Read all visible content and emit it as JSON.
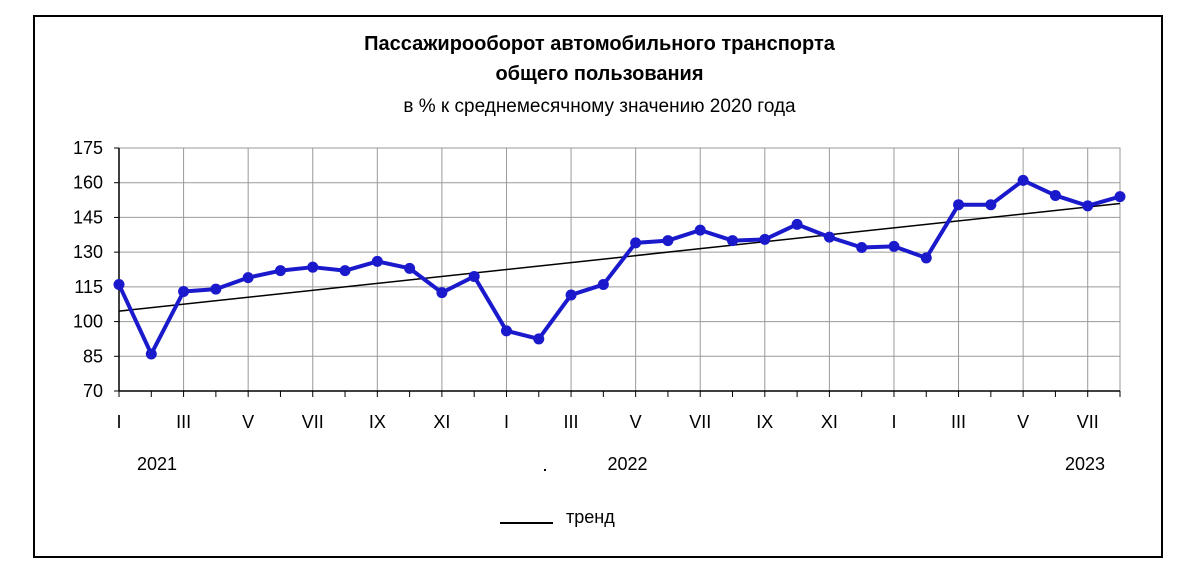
{
  "chart_data": {
    "type": "line",
    "title": "Пассажирооборот автомобильного транспорта",
    "title_line2": "общего пользования",
    "subtitle": "в % к среднемесячному значению 2020 года",
    "ylim": [
      70,
      175
    ],
    "yticks": [
      "70",
      "85",
      "100",
      "115",
      "130",
      "145",
      "160",
      "175"
    ],
    "x_labels": [
      "I",
      "",
      "III",
      "",
      "V",
      "",
      "VII",
      "",
      "IX",
      "",
      "XI",
      "",
      "I",
      "",
      "III",
      "",
      "V",
      "",
      "VII",
      "",
      "IX",
      "",
      "XI",
      "",
      "I",
      "",
      "III",
      "",
      "V",
      "",
      "VII",
      ""
    ],
    "years": [
      {
        "label": "2021",
        "start_index": 0
      },
      {
        "label": "2022",
        "start_index": 12
      },
      {
        "label": "2023",
        "start_index": 24
      }
    ],
    "grid": true,
    "series": [
      {
        "values": [
          116,
          86,
          113,
          114,
          119,
          122,
          123.5,
          122,
          126,
          123,
          112.5,
          119.5,
          96,
          92.5,
          111.5,
          116,
          134,
          135,
          139.5,
          135,
          135.5,
          142,
          136.5,
          132,
          132.5,
          127.5,
          150.5,
          150.5,
          161,
          154.5,
          150,
          154
        ],
        "color": "#1a1acc"
      }
    ],
    "trend": {
      "name": "тренд",
      "start": 104.5,
      "end": 151,
      "color": "#000000"
    }
  }
}
